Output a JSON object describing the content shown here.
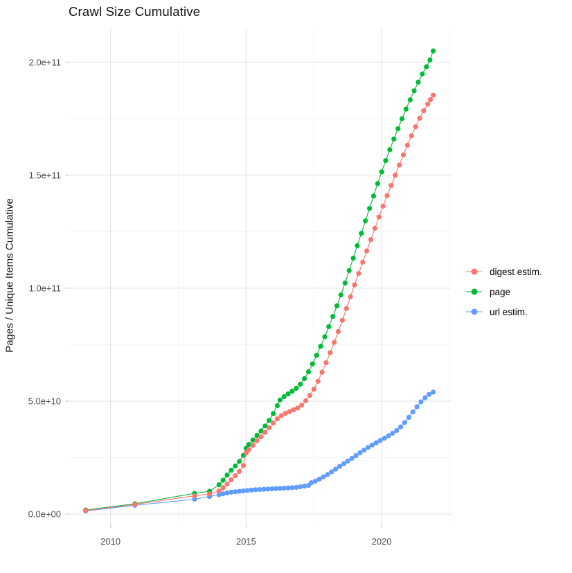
{
  "chart_data": {
    "type": "scatter",
    "title": "Crawl Size Cumulative",
    "xlabel": "",
    "ylabel": "Pages / Unique Items Cumulative",
    "unit": "values in billions (1e9) of pages / unique items",
    "xlim": [
      2008.45,
      2022.55
    ],
    "ylim": [
      -4.6,
      215.3
    ],
    "grid": "major+minor",
    "legend_position": "right",
    "x_ticks": [
      {
        "v": 2010,
        "label": "2010"
      },
      {
        "v": 2015,
        "label": "2015"
      },
      {
        "v": 2020,
        "label": "2020"
      }
    ],
    "x_minor": [
      2012.5,
      2017.5,
      2022.5
    ],
    "y_ticks": [
      {
        "v": 0,
        "label": "0.0e+00"
      },
      {
        "v": 50,
        "label": "5.0e+10"
      },
      {
        "v": 100,
        "label": "1.0e+11"
      },
      {
        "v": 150,
        "label": "1.5e+11"
      },
      {
        "v": 200,
        "label": "2.0e+11"
      }
    ],
    "y_minor": [
      25,
      75,
      125,
      175
    ],
    "series": [
      {
        "name": "digest estim.",
        "color": "#F8766D",
        "points": [
          [
            2009.08,
            1.6
          ],
          [
            2010.9,
            4.3
          ],
          [
            2013.1,
            8.1
          ],
          [
            2013.65,
            8.9
          ],
          [
            2014.0,
            10.2
          ],
          [
            2014.15,
            11.7
          ],
          [
            2014.3,
            13.3
          ],
          [
            2014.45,
            15.2
          ],
          [
            2014.6,
            17.0
          ],
          [
            2014.75,
            18.9
          ],
          [
            2014.9,
            21.5
          ],
          [
            2015.0,
            27.0
          ],
          [
            2015.1,
            28.5
          ],
          [
            2015.25,
            30.5
          ],
          [
            2015.4,
            32.5
          ],
          [
            2015.55,
            34.2
          ],
          [
            2015.7,
            36.2
          ],
          [
            2015.85,
            38.2
          ],
          [
            2016.0,
            40.3
          ],
          [
            2016.15,
            42.2
          ],
          [
            2016.3,
            43.6
          ],
          [
            2016.45,
            44.6
          ],
          [
            2016.6,
            45.4
          ],
          [
            2016.75,
            46.2
          ],
          [
            2016.9,
            47.0
          ],
          [
            2017.05,
            48.2
          ],
          [
            2017.2,
            50.2
          ],
          [
            2017.35,
            52.5
          ],
          [
            2017.5,
            55.3
          ],
          [
            2017.65,
            58.8
          ],
          [
            2017.8,
            62.8
          ],
          [
            2017.95,
            67.0
          ],
          [
            2018.1,
            71.5
          ],
          [
            2018.25,
            76.0
          ],
          [
            2018.4,
            80.8
          ],
          [
            2018.55,
            85.8
          ],
          [
            2018.7,
            91.0
          ],
          [
            2018.85,
            96.2
          ],
          [
            2019.0,
            101.5
          ],
          [
            2019.15,
            106.5
          ],
          [
            2019.3,
            111.5
          ],
          [
            2019.45,
            116.5
          ],
          [
            2019.6,
            121.5
          ],
          [
            2019.75,
            126.5
          ],
          [
            2019.9,
            131.5
          ],
          [
            2020.05,
            136.3
          ],
          [
            2020.2,
            141.0
          ],
          [
            2020.35,
            145.5
          ],
          [
            2020.5,
            150.0
          ],
          [
            2020.65,
            154.5
          ],
          [
            2020.8,
            159.0
          ],
          [
            2020.95,
            163.3
          ],
          [
            2021.1,
            167.5
          ],
          [
            2021.25,
            171.5
          ],
          [
            2021.4,
            175.2
          ],
          [
            2021.55,
            178.6
          ],
          [
            2021.7,
            181.5
          ],
          [
            2021.8,
            183.5
          ],
          [
            2021.9,
            185.5
          ]
        ]
      },
      {
        "name": "page",
        "color": "#00BA38",
        "points": [
          [
            2009.08,
            1.8
          ],
          [
            2010.9,
            4.6
          ],
          [
            2013.1,
            9.2
          ],
          [
            2013.65,
            10.1
          ],
          [
            2014.0,
            13.0
          ],
          [
            2014.15,
            15.0
          ],
          [
            2014.3,
            17.3
          ],
          [
            2014.45,
            19.4
          ],
          [
            2014.6,
            21.3
          ],
          [
            2014.75,
            23.3
          ],
          [
            2014.9,
            26.0
          ],
          [
            2015.0,
            29.1
          ],
          [
            2015.1,
            30.8
          ],
          [
            2015.25,
            32.8
          ],
          [
            2015.4,
            34.8
          ],
          [
            2015.55,
            36.8
          ],
          [
            2015.7,
            39.0
          ],
          [
            2015.85,
            41.5
          ],
          [
            2016.0,
            44.5
          ],
          [
            2016.15,
            48.0
          ],
          [
            2016.25,
            50.5
          ],
          [
            2016.4,
            52.0
          ],
          [
            2016.55,
            53.2
          ],
          [
            2016.7,
            54.4
          ],
          [
            2016.85,
            55.7
          ],
          [
            2017.0,
            57.5
          ],
          [
            2017.15,
            60.0
          ],
          [
            2017.3,
            63.0
          ],
          [
            2017.45,
            66.5
          ],
          [
            2017.6,
            70.3
          ],
          [
            2017.75,
            74.3
          ],
          [
            2017.9,
            78.5
          ],
          [
            2018.05,
            83.0
          ],
          [
            2018.2,
            87.5
          ],
          [
            2018.35,
            92.2
          ],
          [
            2018.5,
            97.0
          ],
          [
            2018.65,
            102.3
          ],
          [
            2018.8,
            107.8
          ],
          [
            2018.95,
            113.3
          ],
          [
            2019.1,
            118.8
          ],
          [
            2019.25,
            124.3
          ],
          [
            2019.4,
            129.8
          ],
          [
            2019.55,
            135.3
          ],
          [
            2019.7,
            140.8
          ],
          [
            2019.85,
            146.3
          ],
          [
            2020.0,
            151.5
          ],
          [
            2020.15,
            156.5
          ],
          [
            2020.3,
            161.3
          ],
          [
            2020.45,
            166.0
          ],
          [
            2020.6,
            170.6
          ],
          [
            2020.75,
            175.0
          ],
          [
            2020.9,
            179.3
          ],
          [
            2021.05,
            183.4
          ],
          [
            2021.2,
            187.4
          ],
          [
            2021.35,
            191.2
          ],
          [
            2021.5,
            194.8
          ],
          [
            2021.65,
            198.0
          ],
          [
            2021.78,
            201.0
          ],
          [
            2021.9,
            205.0
          ]
        ]
      },
      {
        "name": "url estim.",
        "color": "#619CFF",
        "points": [
          [
            2009.08,
            1.4
          ],
          [
            2010.9,
            3.9
          ],
          [
            2013.1,
            6.6
          ],
          [
            2013.65,
            7.8
          ],
          [
            2014.0,
            8.6
          ],
          [
            2014.15,
            9.0
          ],
          [
            2014.3,
            9.4
          ],
          [
            2014.45,
            9.7
          ],
          [
            2014.6,
            9.9
          ],
          [
            2014.75,
            10.1
          ],
          [
            2014.9,
            10.3
          ],
          [
            2015.05,
            10.5
          ],
          [
            2015.2,
            10.65
          ],
          [
            2015.35,
            10.8
          ],
          [
            2015.5,
            10.9
          ],
          [
            2015.65,
            11.0
          ],
          [
            2015.8,
            11.1
          ],
          [
            2015.95,
            11.2
          ],
          [
            2016.1,
            11.3
          ],
          [
            2016.25,
            11.4
          ],
          [
            2016.4,
            11.5
          ],
          [
            2016.55,
            11.6
          ],
          [
            2016.7,
            11.7
          ],
          [
            2016.85,
            11.85
          ],
          [
            2017.0,
            12.1
          ],
          [
            2017.15,
            12.4
          ],
          [
            2017.3,
            12.7
          ],
          [
            2017.4,
            13.9
          ],
          [
            2017.55,
            14.6
          ],
          [
            2017.7,
            15.5
          ],
          [
            2017.85,
            16.5
          ],
          [
            2018.0,
            17.5
          ],
          [
            2018.15,
            18.7
          ],
          [
            2018.3,
            19.9
          ],
          [
            2018.45,
            21.1
          ],
          [
            2018.6,
            22.3
          ],
          [
            2018.75,
            23.5
          ],
          [
            2018.9,
            24.7
          ],
          [
            2019.05,
            25.9
          ],
          [
            2019.2,
            27.1
          ],
          [
            2019.35,
            28.3
          ],
          [
            2019.5,
            29.5
          ],
          [
            2019.65,
            30.6
          ],
          [
            2019.8,
            31.6
          ],
          [
            2019.95,
            32.6
          ],
          [
            2020.1,
            33.6
          ],
          [
            2020.25,
            34.7
          ],
          [
            2020.4,
            35.8
          ],
          [
            2020.55,
            37.0
          ],
          [
            2020.7,
            38.6
          ],
          [
            2020.85,
            40.5
          ],
          [
            2021.0,
            42.8
          ],
          [
            2021.15,
            45.2
          ],
          [
            2021.3,
            47.5
          ],
          [
            2021.45,
            49.7
          ],
          [
            2021.6,
            51.5
          ],
          [
            2021.75,
            53.0
          ],
          [
            2021.9,
            54.0
          ]
        ]
      }
    ],
    "style": {
      "major_grid_color": "#e6e6e6",
      "minor_grid_color": "#f1f1f1",
      "tick_color": "#c6c6c6",
      "tick_label_color": "#4d4d4d",
      "point_radius": 3.6
    }
  }
}
